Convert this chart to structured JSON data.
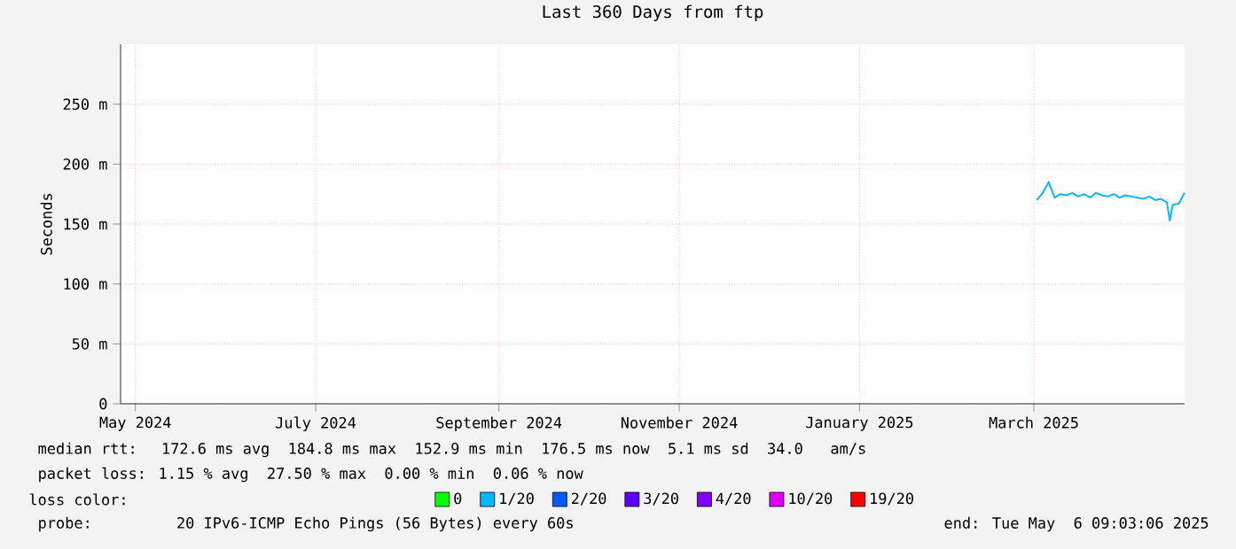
{
  "chart_data": {
    "type": "line",
    "title": "Last 360 Days from ftp",
    "ylabel": "Seconds",
    "xlim": [
      "2024-05-11",
      "2025-05-06"
    ],
    "xticks": [
      {
        "value": "2024-05-16",
        "label": "May 2024"
      },
      {
        "value": "2024-07-16",
        "label": "July 2024"
      },
      {
        "value": "2024-09-16",
        "label": "September 2024"
      },
      {
        "value": "2024-11-16",
        "label": "November 2024"
      },
      {
        "value": "2025-01-16",
        "label": "January 2025"
      },
      {
        "value": "2025-03-16",
        "label": "March 2025"
      }
    ],
    "ylim": [
      0,
      300
    ],
    "yticks": [
      {
        "value": 0,
        "label": "0"
      },
      {
        "value": 50,
        "label": "50 m"
      },
      {
        "value": 100,
        "label": "100 m"
      },
      {
        "value": 150,
        "label": "150 m"
      },
      {
        "value": 200,
        "label": "200 m"
      },
      {
        "value": 250,
        "label": "250 m"
      }
    ],
    "grid": true,
    "legend": "bottom",
    "legend_title": "loss color:",
    "x": [
      "2025-03-17",
      "2025-03-19",
      "2025-03-21",
      "2025-03-23",
      "2025-03-25",
      "2025-03-27",
      "2025-03-29",
      "2025-03-31",
      "2025-04-02",
      "2025-04-04",
      "2025-04-06",
      "2025-04-08",
      "2025-04-10",
      "2025-04-12",
      "2025-04-14",
      "2025-04-16",
      "2025-04-18",
      "2025-04-20",
      "2025-04-22",
      "2025-04-24",
      "2025-04-26",
      "2025-04-28",
      "2025-04-30",
      "2025-05-01",
      "2025-05-02",
      "2025-05-04",
      "2025-05-06"
    ],
    "series": [
      {
        "name": "0",
        "color": "#00ff00",
        "values": [
          null,
          null,
          null,
          null,
          null,
          null,
          null,
          null,
          null,
          null,
          null,
          null,
          null,
          null,
          null,
          null,
          null,
          null,
          null,
          null,
          null,
          null,
          null,
          null,
          null,
          null,
          null
        ]
      },
      {
        "name": "1/20",
        "color": "#00b8ff",
        "values": [
          170,
          176,
          185,
          172,
          175,
          174,
          176,
          173,
          175,
          172,
          176,
          174,
          173,
          175,
          172,
          174,
          173,
          172,
          171,
          173,
          170,
          171,
          168,
          153,
          166,
          167,
          176
        ]
      },
      {
        "name": "2/20",
        "color": "#0059ff",
        "values": [
          null,
          null,
          null,
          null,
          null,
          null,
          null,
          null,
          null,
          null,
          null,
          null,
          null,
          null,
          null,
          null,
          null,
          null,
          null,
          null,
          null,
          null,
          null,
          null,
          null,
          null,
          null
        ]
      },
      {
        "name": "3/20",
        "color": "#5e00ff",
        "values": [
          null,
          null,
          null,
          null,
          null,
          null,
          null,
          null,
          null,
          null,
          null,
          null,
          null,
          null,
          null,
          null,
          null,
          null,
          null,
          null,
          null,
          null,
          null,
          null,
          null,
          null,
          null
        ]
      },
      {
        "name": "4/20",
        "color": "#7e00ff",
        "values": [
          null,
          null,
          null,
          null,
          null,
          null,
          null,
          null,
          null,
          null,
          null,
          null,
          null,
          null,
          null,
          null,
          null,
          null,
          null,
          null,
          null,
          null,
          null,
          null,
          null,
          null,
          null
        ]
      },
      {
        "name": "10/20",
        "color": "#dd00ff",
        "values": [
          null,
          null,
          null,
          null,
          null,
          null,
          null,
          null,
          null,
          null,
          null,
          null,
          null,
          null,
          null,
          null,
          null,
          null,
          null,
          null,
          null,
          null,
          null,
          null,
          null,
          null,
          null
        ]
      },
      {
        "name": "19/20",
        "color": "#ff0000",
        "values": [
          null,
          null,
          null,
          null,
          null,
          null,
          null,
          null,
          null,
          null,
          null,
          null,
          null,
          null,
          null,
          null,
          null,
          null,
          null,
          null,
          null,
          null,
          null,
          null,
          null,
          null,
          null
        ]
      }
    ],
    "annotations": [
      "median rtt:  172.6 ms avg  184.8 ms max  152.9 ms min  176.5 ms now  5.1 ms sd  34.0   am/s",
      "packet loss: 1.15 % avg  27.50 % max  0.00 % min  0.06 % now",
      "probe:       20 IPv6-ICMP Echo Pings (56 Bytes) every 60s",
      "end: Tue May  6 09:03:06 2025"
    ]
  }
}
